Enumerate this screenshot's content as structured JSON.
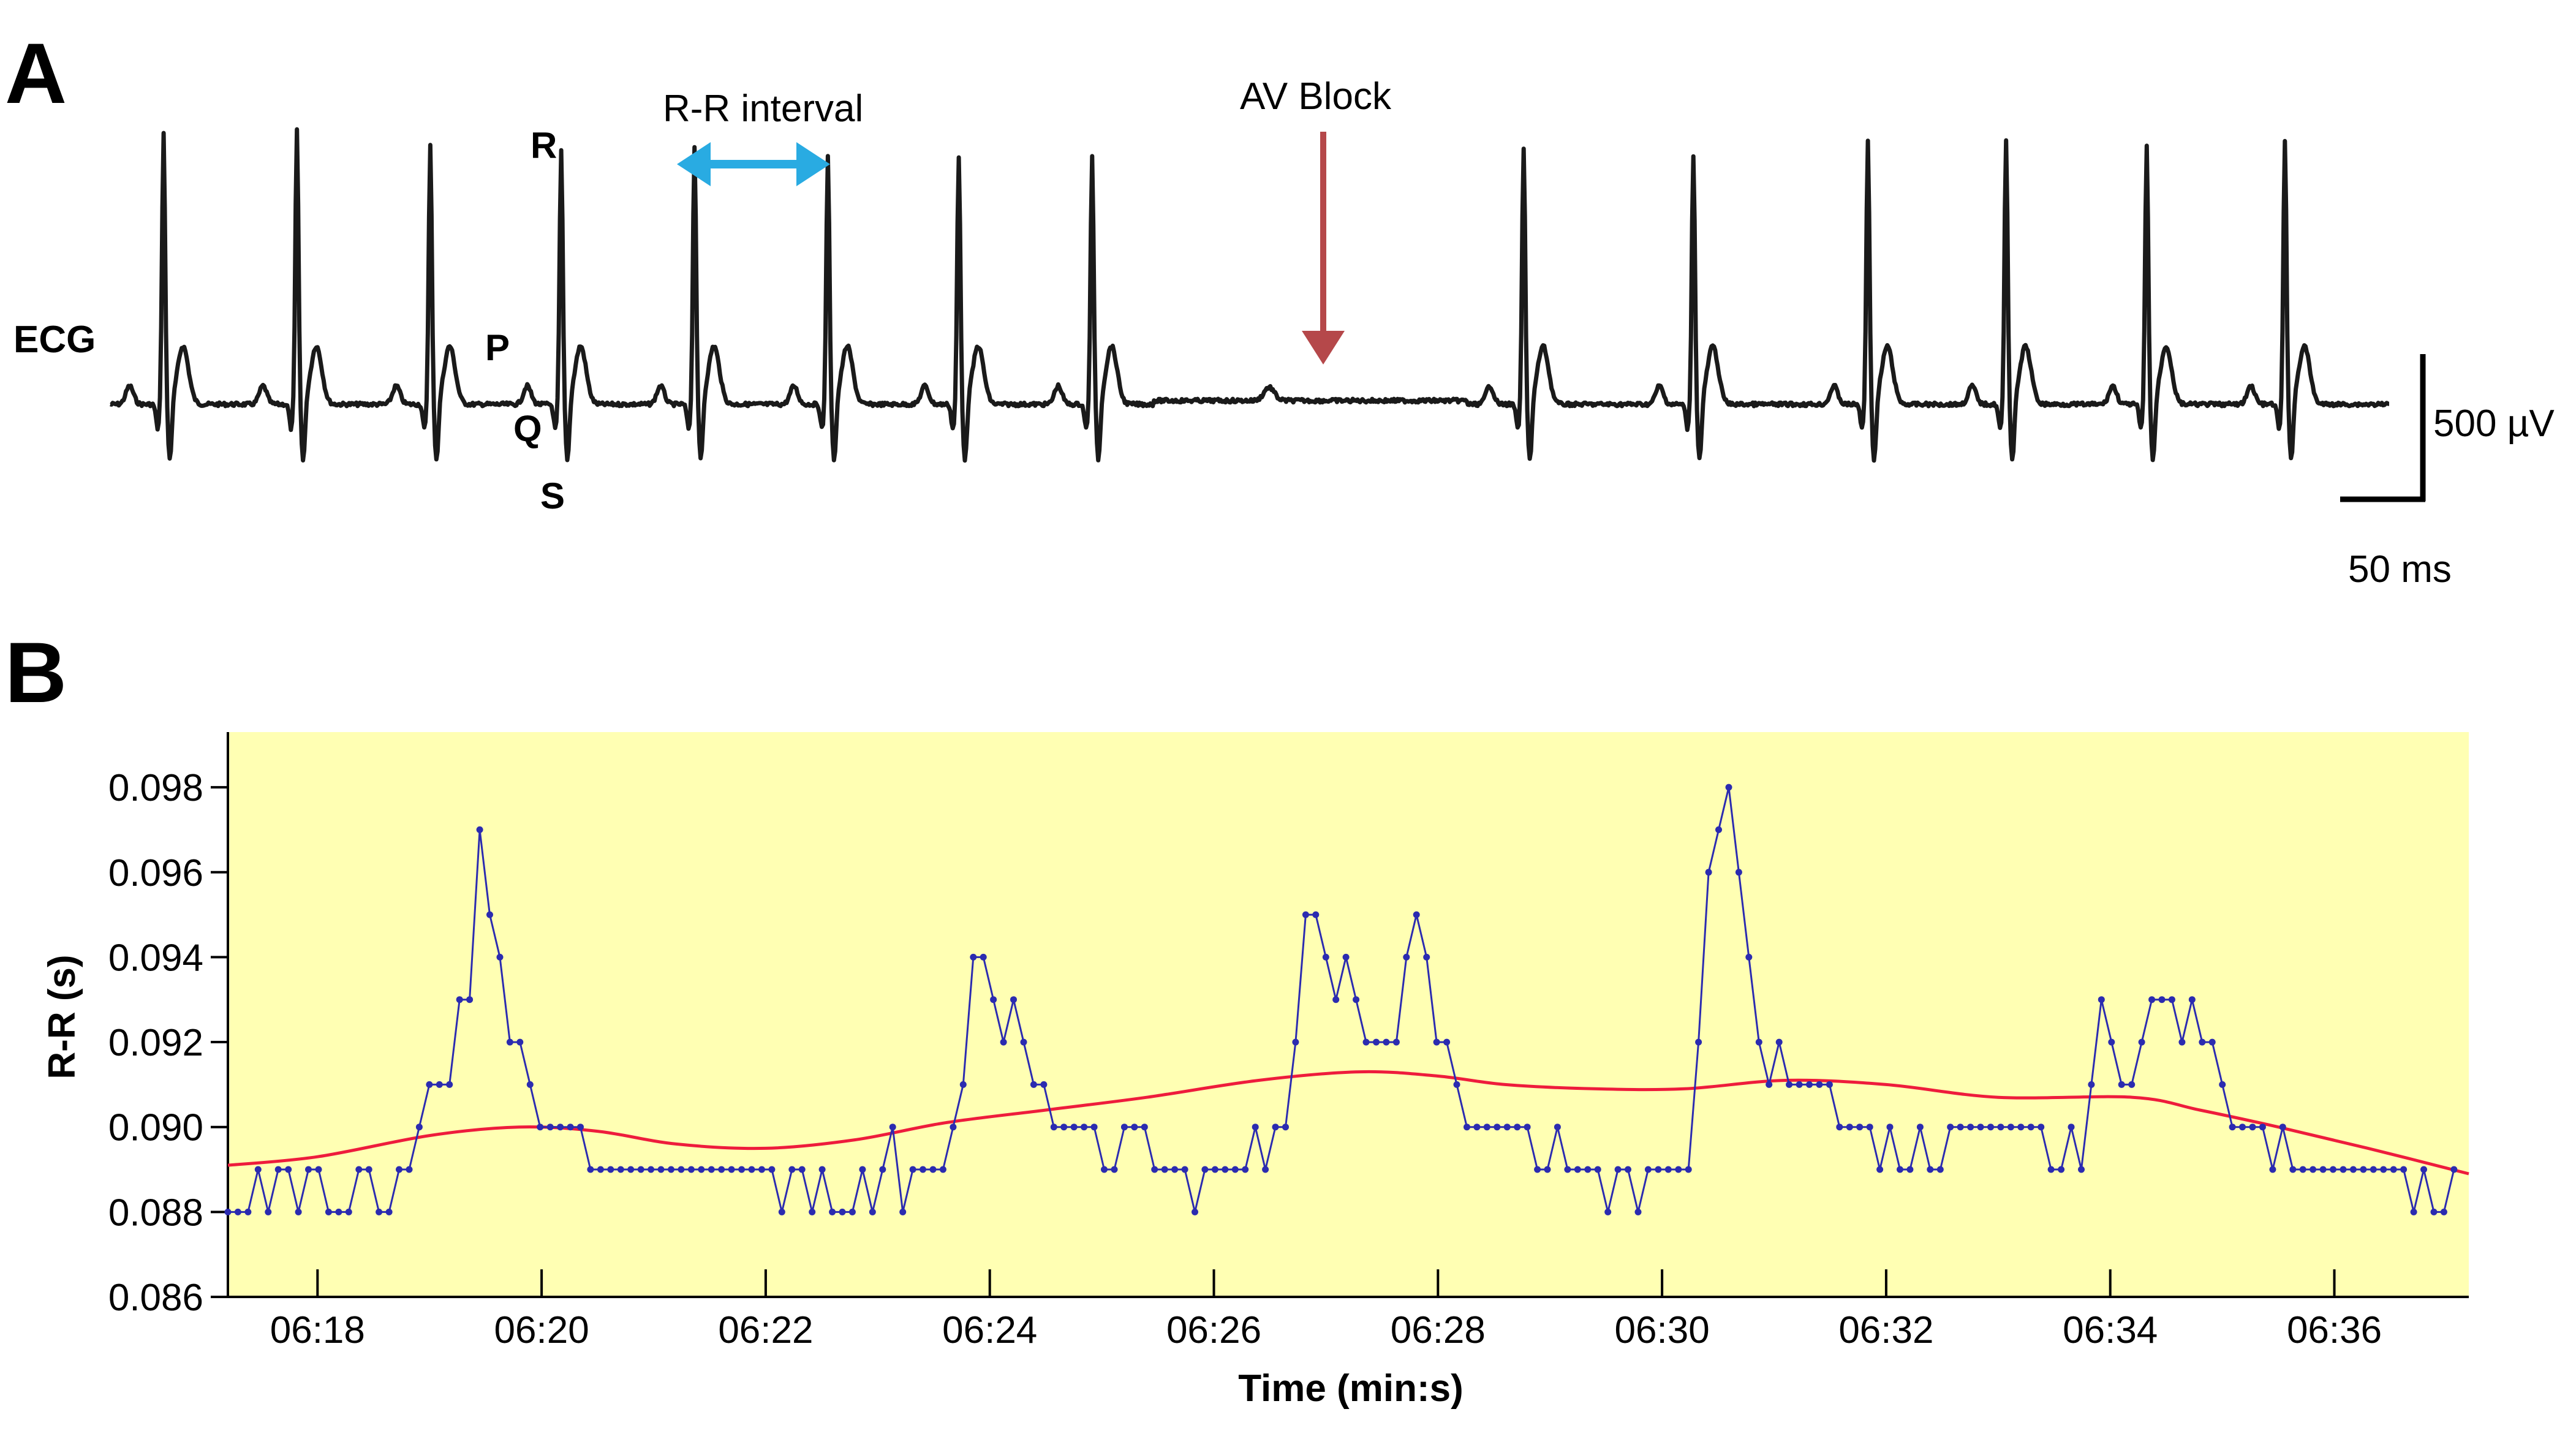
{
  "panel_a": {
    "label": "A",
    "ecg_label": "ECG",
    "waves": {
      "p": "P",
      "q": "Q",
      "r": "R",
      "s": "S"
    },
    "rr_annotation": "R-R interval",
    "av_block_annotation": "AV Block",
    "scale_voltage": "500 µV",
    "scale_time": "50 ms",
    "colors": {
      "trace": "#1a1a1a",
      "rr_arrow": "#29abe2",
      "av_arrow": "#b5484a"
    }
  },
  "panel_b": {
    "label": "B"
  },
  "chart_data": [
    {
      "type": "line",
      "panel": "A",
      "title": "",
      "description_series": "ECG trace",
      "units": {
        "x": "ms",
        "y": "µV"
      },
      "r_peaks_ms": [
        22,
        77,
        132,
        186,
        241,
        296,
        350,
        405,
        583,
        653,
        725,
        782,
        840,
        897
      ],
      "blocked_beat_ms": 478,
      "av_block_window_ms": [
        405,
        583
      ]
    },
    {
      "type": "line",
      "panel": "B",
      "xlabel": "Time (min:s)",
      "ylabel": "R-R (s)",
      "xlim": [
        377.2,
        397.2
      ],
      "ylim": [
        0.086,
        0.0993
      ],
      "background": "#ffffb3",
      "x_tick_values": [
        378,
        380,
        382,
        384,
        386,
        388,
        390,
        392,
        394,
        396
      ],
      "x_tick_labels": [
        "06:18",
        "06:20",
        "06:22",
        "06:24",
        "06:26",
        "06:28",
        "06:30",
        "06:32",
        "06:34",
        "06:36"
      ],
      "y_ticks": [
        0.086,
        0.088,
        0.09,
        0.092,
        0.094,
        0.096,
        0.098
      ],
      "y_tick_labels": [
        "0.086",
        "0.088",
        "0.090",
        "0.092",
        "0.094",
        "0.096",
        "0.098"
      ],
      "grid": false,
      "series": [
        {
          "color": "#2b2bb0",
          "marker": "dot",
          "x_start": 377.2,
          "x_step": 0.0899,
          "values": [
            0.088,
            0.088,
            0.088,
            0.089,
            0.088,
            0.089,
            0.089,
            0.088,
            0.089,
            0.089,
            0.088,
            0.088,
            0.088,
            0.089,
            0.089,
            0.088,
            0.088,
            0.089,
            0.089,
            0.09,
            0.091,
            0.091,
            0.091,
            0.093,
            0.093,
            0.097,
            0.095,
            0.094,
            0.092,
            0.092,
            0.091,
            0.09,
            0.09,
            0.09,
            0.09,
            0.09,
            0.089,
            0.089,
            0.089,
            0.089,
            0.089,
            0.089,
            0.089,
            0.089,
            0.089,
            0.089,
            0.089,
            0.089,
            0.089,
            0.089,
            0.089,
            0.089,
            0.089,
            0.089,
            0.089,
            0.088,
            0.089,
            0.089,
            0.088,
            0.089,
            0.088,
            0.088,
            0.088,
            0.089,
            0.088,
            0.089,
            0.09,
            0.088,
            0.089,
            0.089,
            0.089,
            0.089,
            0.09,
            0.091,
            0.094,
            0.094,
            0.093,
            0.092,
            0.093,
            0.092,
            0.091,
            0.091,
            0.09,
            0.09,
            0.09,
            0.09,
            0.09,
            0.089,
            0.089,
            0.09,
            0.09,
            0.09,
            0.089,
            0.089,
            0.089,
            0.089,
            0.088,
            0.089,
            0.089,
            0.089,
            0.089,
            0.089,
            0.09,
            0.089,
            0.09,
            0.09,
            0.092,
            0.095,
            0.095,
            0.094,
            0.093,
            0.094,
            0.093,
            0.092,
            0.092,
            0.092,
            0.092,
            0.094,
            0.095,
            0.094,
            0.092,
            0.092,
            0.091,
            0.09,
            0.09,
            0.09,
            0.09,
            0.09,
            0.09,
            0.09,
            0.089,
            0.089,
            0.09,
            0.089,
            0.089,
            0.089,
            0.089,
            0.088,
            0.089,
            0.089,
            0.088,
            0.089,
            0.089,
            0.089,
            0.089,
            0.089,
            0.092,
            0.096,
            0.097,
            0.098,
            0.096,
            0.094,
            0.092,
            0.091,
            0.092,
            0.091,
            0.091,
            0.091,
            0.091,
            0.091,
            0.09,
            0.09,
            0.09,
            0.09,
            0.089,
            0.09,
            0.089,
            0.089,
            0.09,
            0.089,
            0.089,
            0.09,
            0.09,
            0.09,
            0.09,
            0.09,
            0.09,
            0.09,
            0.09,
            0.09,
            0.09,
            0.089,
            0.089,
            0.09,
            0.089,
            0.091,
            0.093,
            0.092,
            0.091,
            0.091,
            0.092,
            0.093,
            0.093,
            0.093,
            0.092,
            0.093,
            0.092,
            0.092,
            0.091,
            0.09,
            0.09,
            0.09,
            0.09,
            0.089,
            0.09,
            0.089,
            0.089,
            0.089,
            0.089,
            0.089,
            0.089,
            0.089,
            0.089,
            0.089,
            0.089,
            0.089,
            0.089,
            0.088,
            0.089,
            0.088,
            0.088,
            0.089
          ]
        },
        {
          "color": "#ee1c3c",
          "marker": "none",
          "x": [
            377.2,
            378.0,
            379.0,
            379.8,
            380.5,
            381.2,
            382.0,
            382.8,
            383.6,
            384.5,
            385.4,
            386.4,
            387.3,
            388.0,
            388.6,
            389.4,
            390.2,
            391.1,
            392.0,
            393.0,
            394.2,
            394.8,
            395.5,
            396.3,
            397.2
          ],
          "values": [
            0.0891,
            0.0893,
            0.0898,
            0.09,
            0.0899,
            0.0896,
            0.0895,
            0.0897,
            0.0901,
            0.0904,
            0.0907,
            0.0911,
            0.0913,
            0.0912,
            0.091,
            0.0909,
            0.0909,
            0.0911,
            0.091,
            0.0907,
            0.0907,
            0.0904,
            0.09,
            0.0895,
            0.0889
          ]
        }
      ]
    }
  ]
}
